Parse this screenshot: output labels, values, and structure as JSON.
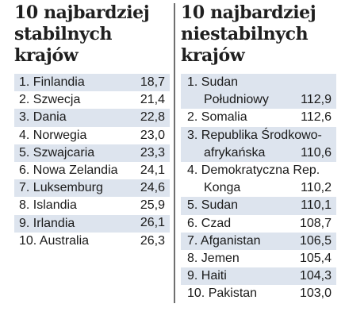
{
  "stable": {
    "heading": [
      "10 najbardziej",
      "stabilnych",
      "krajów"
    ],
    "items": [
      {
        "name": "1. Finlandia",
        "value": "18,7"
      },
      {
        "name": "2. Szwecja",
        "value": "21,4"
      },
      {
        "name": "3. Dania",
        "value": "22,8"
      },
      {
        "name": "4. Norwegia",
        "value": "23,0"
      },
      {
        "name": "5. Szwajcaria",
        "value": "23,3"
      },
      {
        "name": "6. Nowa Zelandia",
        "value": "24,1"
      },
      {
        "name": "7. Luksemburg",
        "value": "24,6"
      },
      {
        "name": "8. Islandia",
        "value": "25,9"
      },
      {
        "name": "9. Irlandia",
        "value": "26,1"
      },
      {
        "name": "10. Australia",
        "value": "26,3"
      }
    ]
  },
  "unstable": {
    "heading": [
      "10 najbardziej",
      "niestabilnych",
      "krajów"
    ],
    "items": [
      {
        "name": "1. Sudan",
        "name2": "Południowy",
        "value": "112,9"
      },
      {
        "name": "2. Somalia",
        "name2": "",
        "value": "112,6"
      },
      {
        "name": "3. Republika Środkowo-",
        "name2": "afrykańska",
        "value": "110,6"
      },
      {
        "name": "4. Demokratyczna Rep.",
        "name2": "Konga",
        "value": "110,2"
      },
      {
        "name": "5. Sudan",
        "name2": "",
        "value": "110,1"
      },
      {
        "name": "6. Czad",
        "name2": "",
        "value": "108,7"
      },
      {
        "name": "7. Afganistan",
        "name2": "",
        "value": "106,5"
      },
      {
        "name": "8. Jemen",
        "name2": "",
        "value": "105,4"
      },
      {
        "name": "9. Haiti",
        "name2": "",
        "value": "104,3"
      },
      {
        "name": "10. Pakistan",
        "name2": "",
        "value": "103,0"
      }
    ]
  },
  "colors": {
    "row_shade": "#dde4ee",
    "divider": "#6f6f6f",
    "text": "#1a1a1a"
  }
}
